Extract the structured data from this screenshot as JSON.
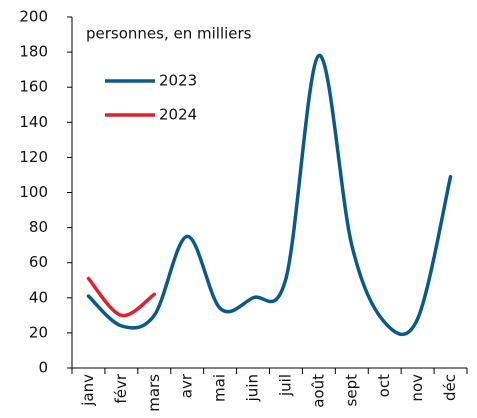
{
  "chart_data": {
    "type": "line",
    "annotation": "personnes, en milliers",
    "categories": [
      "janv",
      "févr",
      "mars",
      "avr",
      "mai",
      "juin",
      "juil",
      "août",
      "sept",
      "oct",
      "nov",
      "déc"
    ],
    "series": [
      {
        "name": "2023",
        "color": "#0c5a84",
        "values": [
          41,
          24,
          30,
          75,
          34,
          40,
          51,
          178,
          70,
          26,
          28,
          109
        ]
      },
      {
        "name": "2024",
        "color": "#e0202e",
        "values": [
          51,
          30,
          42,
          null,
          null,
          null,
          null,
          null,
          null,
          null,
          null,
          null
        ]
      }
    ],
    "ylim": [
      0,
      200
    ],
    "yticks": [
      0,
      20,
      40,
      60,
      80,
      100,
      120,
      140,
      160,
      180,
      200
    ],
    "legend": "upper left",
    "grid": false
  }
}
